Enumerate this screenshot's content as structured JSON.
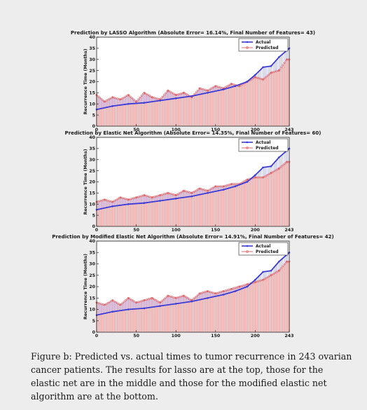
{
  "caption": "Figure b: Predicted vs. actual times to tumor recurrence in 243 ovarian cancer patients. The results for lasso are at the top, those for the elastic net are in the middle and those for the modified elastic net algorithm are at the bottom.",
  "colors": {
    "actual": "#3b3bd6",
    "predicted": "#e06a6a",
    "bar": "#f0a3a3",
    "connector": "#9a9af0"
  },
  "chart_data": [
    {
      "type": "line",
      "title": "Prediction by LASSO Algorithm (Absolute Error= 16.14%, Final Number of Features= 43)",
      "ylabel": "Recurrence Time (Months)",
      "xlabel": "",
      "xlim": [
        0,
        243
      ],
      "ylim": [
        0,
        40
      ],
      "x_ticks": [
        "0",
        "50",
        "100",
        "150",
        "200",
        "243"
      ],
      "y_ticks": [
        "0",
        "5",
        "10",
        "15",
        "20",
        "25",
        "30",
        "35",
        "40"
      ],
      "legend": [
        "Actual",
        "Predicted"
      ],
      "legend_position": "top-right",
      "series": [
        {
          "name": "Actual",
          "x": [
            0,
            20,
            40,
            60,
            80,
            100,
            120,
            140,
            160,
            175,
            190,
            200,
            210,
            220,
            230,
            243
          ],
          "y": [
            7.5,
            9,
            10,
            10.5,
            11.5,
            12.5,
            13.5,
            15,
            16.5,
            18,
            20,
            23,
            26.5,
            27,
            31,
            35
          ]
        },
        {
          "name": "Predicted",
          "x": [
            0,
            10,
            20,
            30,
            40,
            50,
            60,
            70,
            80,
            90,
            100,
            110,
            120,
            130,
            140,
            150,
            160,
            170,
            180,
            190,
            200,
            210,
            220,
            230,
            240
          ],
          "y": [
            14,
            11,
            13,
            12,
            14,
            11,
            15,
            13,
            12,
            16,
            14,
            15,
            13,
            17,
            16,
            18,
            17,
            19,
            18,
            20,
            22,
            21,
            24,
            25,
            30
          ]
        }
      ]
    },
    {
      "type": "line",
      "title": "Prediction by Elastic Net Algorithm (Absolute Error= 14.35%, Final Number of Features= 60)",
      "ylabel": "Recurrence Time (Months)",
      "xlabel": "",
      "xlim": [
        0,
        243
      ],
      "ylim": [
        0,
        40
      ],
      "x_ticks": [
        "0",
        "50",
        "100",
        "150",
        "200",
        "243"
      ],
      "y_ticks": [
        "0",
        "5",
        "10",
        "15",
        "20",
        "25",
        "30",
        "35",
        "40"
      ],
      "legend": [
        "Actual",
        "Predicted"
      ],
      "legend_position": "top-right",
      "series": [
        {
          "name": "Actual",
          "x": [
            0,
            20,
            40,
            60,
            80,
            100,
            120,
            140,
            160,
            175,
            190,
            200,
            210,
            220,
            230,
            243
          ],
          "y": [
            7.5,
            9,
            10,
            10.5,
            11.5,
            12.5,
            13.5,
            15,
            16.5,
            18,
            20,
            23,
            26.5,
            27,
            31,
            35
          ]
        },
        {
          "name": "Predicted",
          "x": [
            0,
            10,
            20,
            30,
            40,
            50,
            60,
            70,
            80,
            90,
            100,
            110,
            120,
            130,
            140,
            150,
            160,
            170,
            180,
            190,
            200,
            210,
            220,
            230,
            240
          ],
          "y": [
            11,
            12,
            11,
            13,
            12,
            13,
            14,
            13,
            14,
            15,
            14,
            16,
            15,
            17,
            16,
            18,
            18,
            19,
            19,
            21,
            22,
            22,
            24,
            26,
            29
          ]
        }
      ]
    },
    {
      "type": "line",
      "title": "Prediction by Modified Elastic Net Algorithm (Absolute Error= 14.91%, Final Number of Features= 42)",
      "ylabel": "Recurrence Time (Months)",
      "xlabel": "",
      "xlim": [
        0,
        243
      ],
      "ylim": [
        0,
        40
      ],
      "x_ticks": [
        "0",
        "50",
        "100",
        "150",
        "200",
        "243"
      ],
      "y_ticks": [
        "0",
        "5",
        "10",
        "15",
        "20",
        "25",
        "30",
        "35",
        "40"
      ],
      "legend": [
        "Actual",
        "Predicted"
      ],
      "legend_position": "top-right",
      "series": [
        {
          "name": "Actual",
          "x": [
            0,
            20,
            40,
            60,
            80,
            100,
            120,
            140,
            160,
            175,
            190,
            200,
            210,
            220,
            230,
            243
          ],
          "y": [
            7.5,
            9,
            10,
            10.5,
            11.5,
            12.5,
            13.5,
            15,
            16.5,
            18,
            20,
            23,
            26.5,
            27,
            31,
            35
          ]
        },
        {
          "name": "Predicted",
          "x": [
            0,
            10,
            20,
            30,
            40,
            50,
            60,
            70,
            80,
            90,
            100,
            110,
            120,
            130,
            140,
            150,
            160,
            170,
            180,
            190,
            200,
            210,
            220,
            230,
            240
          ],
          "y": [
            13,
            12,
            14,
            12,
            15,
            13,
            14,
            15,
            13,
            16,
            15,
            16,
            14,
            17,
            18,
            17,
            18,
            19,
            20,
            21,
            22,
            23,
            25,
            27,
            31
          ]
        }
      ]
    }
  ]
}
